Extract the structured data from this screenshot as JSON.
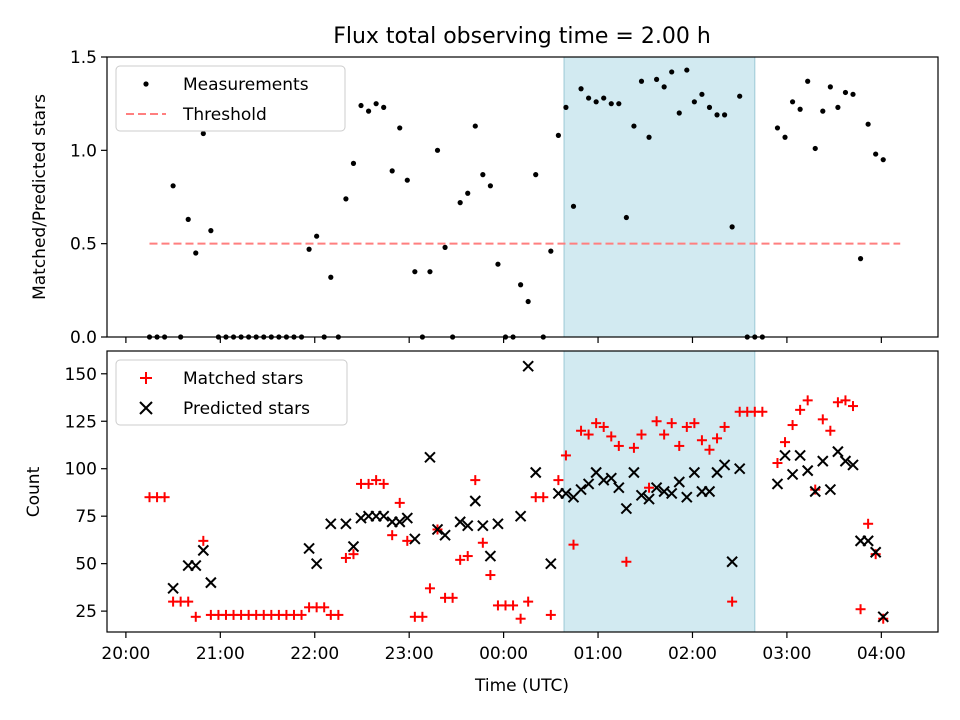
{
  "title": "Flux total observing time = 2.00 h",
  "xlabel": "Time (UTC)",
  "colors": {
    "measurement": "#000000",
    "threshold": "#ff7f7f",
    "matched": "#ff0000",
    "predicted": "#000000",
    "span_fill": "#add8e6"
  },
  "chart_data": [
    {
      "type": "scatter",
      "ylabel": "Matched/Predicted stars",
      "xlim": [
        -0.2,
        8.6
      ],
      "ylim": [
        0,
        1.5
      ],
      "yticks": [
        "0.0",
        "0.5",
        "1.0",
        "1.5"
      ],
      "ytick_values": [
        0,
        0.5,
        1.0,
        1.5
      ],
      "highlight_span": [
        4.64,
        6.66
      ],
      "legend": {
        "placement": "top-left",
        "labels": [
          "Measurements",
          "Threshold"
        ]
      },
      "threshold": {
        "name": "Threshold",
        "y": 0.5,
        "x_range": [
          0.25,
          8.2
        ]
      },
      "series": [
        {
          "name": "Measurements",
          "points": [
            [
              0.25,
              0
            ],
            [
              0.33,
              0
            ],
            [
              0.41,
              0
            ],
            [
              0.5,
              0.81
            ],
            [
              0.58,
              0
            ],
            [
              0.66,
              0.63
            ],
            [
              0.74,
              0.45
            ],
            [
              0.82,
              1.09
            ],
            [
              0.9,
              0.57
            ],
            [
              0.98,
              0
            ],
            [
              1.06,
              0
            ],
            [
              1.14,
              0
            ],
            [
              1.22,
              0
            ],
            [
              1.3,
              0
            ],
            [
              1.38,
              0
            ],
            [
              1.46,
              0
            ],
            [
              1.54,
              0
            ],
            [
              1.62,
              0
            ],
            [
              1.7,
              0
            ],
            [
              1.78,
              0
            ],
            [
              1.86,
              0
            ],
            [
              1.94,
              0.47
            ],
            [
              2.02,
              0.54
            ],
            [
              2.1,
              0
            ],
            [
              2.17,
              0.32
            ],
            [
              2.25,
              0
            ],
            [
              2.33,
              0.74
            ],
            [
              2.41,
              0.93
            ],
            [
              2.49,
              1.24
            ],
            [
              2.57,
              1.21
            ],
            [
              2.65,
              1.25
            ],
            [
              2.73,
              1.23
            ],
            [
              2.82,
              0.89
            ],
            [
              2.9,
              1.12
            ],
            [
              2.98,
              0.84
            ],
            [
              3.06,
              0.35
            ],
            [
              3.14,
              0
            ],
            [
              3.22,
              0.35
            ],
            [
              3.3,
              1.0
            ],
            [
              3.38,
              0.48
            ],
            [
              3.46,
              0
            ],
            [
              3.54,
              0.72
            ],
            [
              3.62,
              0.77
            ],
            [
              3.7,
              1.13
            ],
            [
              3.78,
              0.87
            ],
            [
              3.86,
              0.81
            ],
            [
              3.94,
              0.39
            ],
            [
              4.02,
              0
            ],
            [
              4.1,
              0
            ],
            [
              4.18,
              0.28
            ],
            [
              4.26,
              0.19
            ],
            [
              4.34,
              0.87
            ],
            [
              4.42,
              0
            ],
            [
              4.5,
              0.46
            ],
            [
              4.58,
              1.08
            ],
            [
              4.66,
              1.23
            ],
            [
              4.74,
              0.7
            ],
            [
              4.82,
              1.33
            ],
            [
              4.9,
              1.28
            ],
            [
              4.98,
              1.26
            ],
            [
              5.06,
              1.28
            ],
            [
              5.14,
              1.25
            ],
            [
              5.22,
              1.25
            ],
            [
              5.3,
              0.64
            ],
            [
              5.38,
              1.13
            ],
            [
              5.46,
              1.37
            ],
            [
              5.54,
              1.07
            ],
            [
              5.62,
              1.38
            ],
            [
              5.7,
              1.34
            ],
            [
              5.78,
              1.42
            ],
            [
              5.86,
              1.2
            ],
            [
              5.94,
              1.43
            ],
            [
              6.02,
              1.26
            ],
            [
              6.1,
              1.3
            ],
            [
              6.18,
              1.23
            ],
            [
              6.26,
              1.19
            ],
            [
              6.34,
              1.19
            ],
            [
              6.42,
              0.59
            ],
            [
              6.5,
              1.29
            ],
            [
              6.58,
              0
            ],
            [
              6.66,
              0
            ],
            [
              6.74,
              0
            ],
            [
              6.9,
              1.12
            ],
            [
              6.98,
              1.07
            ],
            [
              7.06,
              1.26
            ],
            [
              7.14,
              1.22
            ],
            [
              7.22,
              1.37
            ],
            [
              7.3,
              1.01
            ],
            [
              7.38,
              1.21
            ],
            [
              7.46,
              1.34
            ],
            [
              7.54,
              1.23
            ],
            [
              7.62,
              1.31
            ],
            [
              7.7,
              1.3
            ],
            [
              7.78,
              0.42
            ],
            [
              7.86,
              1.14
            ],
            [
              7.94,
              0.98
            ],
            [
              8.02,
              0.95
            ]
          ]
        }
      ]
    },
    {
      "type": "scatter",
      "ylabel": "Count",
      "xlim": [
        -0.2,
        8.6
      ],
      "ylim": [
        14,
        162
      ],
      "yticks": [
        "25",
        "50",
        "75",
        "100",
        "125",
        "150"
      ],
      "ytick_values": [
        25,
        50,
        75,
        100,
        125,
        150
      ],
      "xticks": [
        "20:00",
        "21:00",
        "22:00",
        "23:00",
        "00:00",
        "01:00",
        "02:00",
        "03:00",
        "04:00"
      ],
      "xtick_values": [
        0,
        1,
        2,
        3,
        4,
        5,
        6,
        7,
        8
      ],
      "highlight_span": [
        4.64,
        6.66
      ],
      "legend": {
        "placement": "top-left",
        "labels": [
          "Matched stars",
          "Predicted stars"
        ]
      },
      "series": [
        {
          "name": "Matched stars",
          "marker": "plus",
          "points": [
            [
              0.25,
              85
            ],
            [
              0.33,
              85
            ],
            [
              0.41,
              85
            ],
            [
              0.5,
              30
            ],
            [
              0.58,
              30
            ],
            [
              0.66,
              30
            ],
            [
              0.74,
              22
            ],
            [
              0.82,
              62
            ],
            [
              0.9,
              23
            ],
            [
              0.98,
              23
            ],
            [
              1.06,
              23
            ],
            [
              1.14,
              23
            ],
            [
              1.22,
              23
            ],
            [
              1.3,
              23
            ],
            [
              1.38,
              23
            ],
            [
              1.46,
              23
            ],
            [
              1.54,
              23
            ],
            [
              1.62,
              23
            ],
            [
              1.7,
              23
            ],
            [
              1.78,
              23
            ],
            [
              1.86,
              23
            ],
            [
              1.94,
              27
            ],
            [
              2.02,
              27
            ],
            [
              2.1,
              27
            ],
            [
              2.17,
              23
            ],
            [
              2.25,
              23
            ],
            [
              2.33,
              53
            ],
            [
              2.41,
              55
            ],
            [
              2.49,
              92
            ],
            [
              2.57,
              92
            ],
            [
              2.65,
              94
            ],
            [
              2.73,
              92
            ],
            [
              2.82,
              65
            ],
            [
              2.9,
              82
            ],
            [
              2.98,
              62
            ],
            [
              3.06,
              22
            ],
            [
              3.14,
              22
            ],
            [
              3.22,
              37
            ],
            [
              3.3,
              68
            ],
            [
              3.38,
              32
            ],
            [
              3.46,
              32
            ],
            [
              3.54,
              52
            ],
            [
              3.62,
              54
            ],
            [
              3.7,
              94
            ],
            [
              3.78,
              61
            ],
            [
              3.86,
              44
            ],
            [
              3.94,
              28
            ],
            [
              4.02,
              28
            ],
            [
              4.1,
              28
            ],
            [
              4.18,
              21
            ],
            [
              4.26,
              30
            ],
            [
              4.34,
              85
            ],
            [
              4.42,
              85
            ],
            [
              4.5,
              23
            ],
            [
              4.58,
              94
            ],
            [
              4.66,
              107
            ],
            [
              4.74,
              60
            ],
            [
              4.82,
              120
            ],
            [
              4.9,
              118
            ],
            [
              4.98,
              124
            ],
            [
              5.06,
              122
            ],
            [
              5.14,
              117
            ],
            [
              5.22,
              112
            ],
            [
              5.3,
              51
            ],
            [
              5.38,
              111
            ],
            [
              5.46,
              118
            ],
            [
              5.54,
              90
            ],
            [
              5.62,
              125
            ],
            [
              5.7,
              118
            ],
            [
              5.78,
              124
            ],
            [
              5.86,
              112
            ],
            [
              5.94,
              122
            ],
            [
              6.02,
              124
            ],
            [
              6.1,
              115
            ],
            [
              6.18,
              110
            ],
            [
              6.26,
              116
            ],
            [
              6.34,
              122
            ],
            [
              6.42,
              30
            ],
            [
              6.5,
              130
            ],
            [
              6.58,
              130
            ],
            [
              6.66,
              130
            ],
            [
              6.74,
              130
            ],
            [
              6.9,
              103
            ],
            [
              6.98,
              114
            ],
            [
              7.06,
              123
            ],
            [
              7.14,
              131
            ],
            [
              7.22,
              136
            ],
            [
              7.3,
              89
            ],
            [
              7.38,
              126
            ],
            [
              7.46,
              120
            ],
            [
              7.54,
              135
            ],
            [
              7.62,
              136
            ],
            [
              7.7,
              133
            ],
            [
              7.78,
              26
            ],
            [
              7.86,
              71
            ],
            [
              7.94,
              55
            ],
            [
              8.02,
              21
            ]
          ]
        },
        {
          "name": "Predicted stars",
          "marker": "x",
          "points": [
            [
              0.5,
              37
            ],
            [
              0.66,
              49
            ],
            [
              0.74,
              49
            ],
            [
              0.82,
              57
            ],
            [
              0.9,
              40
            ],
            [
              1.94,
              58
            ],
            [
              2.02,
              50
            ],
            [
              2.17,
              71
            ],
            [
              2.33,
              71
            ],
            [
              2.41,
              59
            ],
            [
              2.49,
              74
            ],
            [
              2.57,
              75
            ],
            [
              2.65,
              75
            ],
            [
              2.73,
              75
            ],
            [
              2.82,
              72
            ],
            [
              2.9,
              72
            ],
            [
              2.98,
              74
            ],
            [
              3.06,
              63
            ],
            [
              3.22,
              106
            ],
            [
              3.3,
              68
            ],
            [
              3.38,
              65
            ],
            [
              3.54,
              72
            ],
            [
              3.62,
              70
            ],
            [
              3.7,
              83
            ],
            [
              3.78,
              70
            ],
            [
              3.86,
              54
            ],
            [
              3.94,
              71
            ],
            [
              4.18,
              75
            ],
            [
              4.26,
              154
            ],
            [
              4.34,
              98
            ],
            [
              4.5,
              50
            ],
            [
              4.58,
              87
            ],
            [
              4.66,
              87
            ],
            [
              4.74,
              85
            ],
            [
              4.82,
              89
            ],
            [
              4.9,
              92
            ],
            [
              4.98,
              98
            ],
            [
              5.06,
              94
            ],
            [
              5.14,
              95
            ],
            [
              5.22,
              90
            ],
            [
              5.3,
              79
            ],
            [
              5.38,
              98
            ],
            [
              5.46,
              86
            ],
            [
              5.54,
              84
            ],
            [
              5.62,
              90
            ],
            [
              5.7,
              88
            ],
            [
              5.78,
              87
            ],
            [
              5.86,
              93
            ],
            [
              5.94,
              85
            ],
            [
              6.02,
              98
            ],
            [
              6.1,
              88
            ],
            [
              6.18,
              88
            ],
            [
              6.26,
              98
            ],
            [
              6.34,
              102
            ],
            [
              6.42,
              51
            ],
            [
              6.5,
              100
            ],
            [
              6.9,
              92
            ],
            [
              6.98,
              107
            ],
            [
              7.06,
              97
            ],
            [
              7.14,
              107
            ],
            [
              7.22,
              99
            ],
            [
              7.3,
              88
            ],
            [
              7.38,
              104
            ],
            [
              7.46,
              89
            ],
            [
              7.54,
              109
            ],
            [
              7.62,
              104
            ],
            [
              7.7,
              102
            ],
            [
              7.78,
              62
            ],
            [
              7.86,
              62
            ],
            [
              7.94,
              56
            ],
            [
              8.02,
              22
            ]
          ]
        }
      ]
    }
  ]
}
